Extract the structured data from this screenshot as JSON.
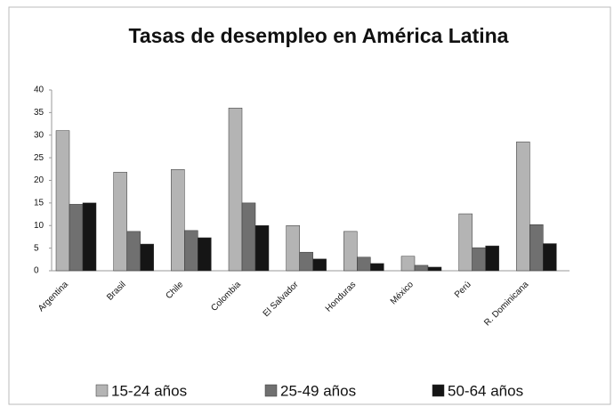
{
  "chart_data": {
    "type": "bar",
    "title": "Tasas de desempleo en América Latina",
    "categories": [
      "Argentina",
      "Brasil",
      "Chile",
      "Colombia",
      "El Salvador",
      "Honduras",
      "México",
      "Perú",
      "R. Dominicana"
    ],
    "series": [
      {
        "name": "15-24 años",
        "color": "#b4b4b4",
        "values": [
          31,
          21.8,
          22.4,
          36,
          10,
          8.7,
          3.2,
          12.6,
          28.5
        ]
      },
      {
        "name": "25-49 años",
        "color": "#707070",
        "values": [
          14.7,
          8.7,
          8.9,
          15,
          4.1,
          3,
          1.2,
          5.1,
          10.2
        ]
      },
      {
        "name": "50-64 años",
        "color": "#151515",
        "values": [
          15,
          5.9,
          7.3,
          10,
          2.6,
          1.6,
          0.8,
          5.5,
          6
        ]
      }
    ],
    "ylim": [
      0,
      40
    ],
    "yticks": [
      0,
      5,
      10,
      15,
      20,
      25,
      30,
      35,
      40
    ],
    "legend": "bottom"
  }
}
